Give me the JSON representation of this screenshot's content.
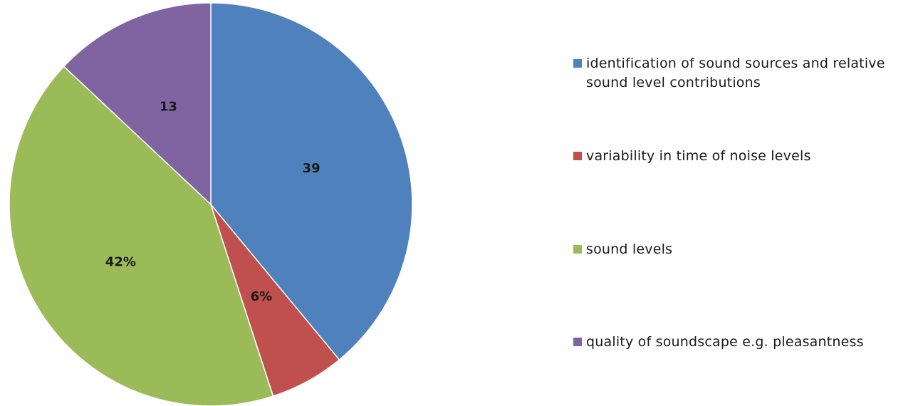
{
  "chart_data": {
    "type": "pie",
    "slices": [
      {
        "name": "identification of sound sources and relative sound level contributions",
        "value": 39,
        "label": "39",
        "color": "#4F81BD"
      },
      {
        "name": "variability in time of noise levels",
        "value": 6,
        "label": "6%",
        "color": "#C0504D"
      },
      {
        "name": "sound levels",
        "value": 42,
        "label": "42%",
        "color": "#9BBB59"
      },
      {
        "name": "quality of soundscape e.g. pleasantness",
        "value": 13,
        "label": "13",
        "color": "#8064A2"
      }
    ],
    "start": "12 o'clock",
    "direction": "clockwise",
    "legend_position": "right"
  }
}
